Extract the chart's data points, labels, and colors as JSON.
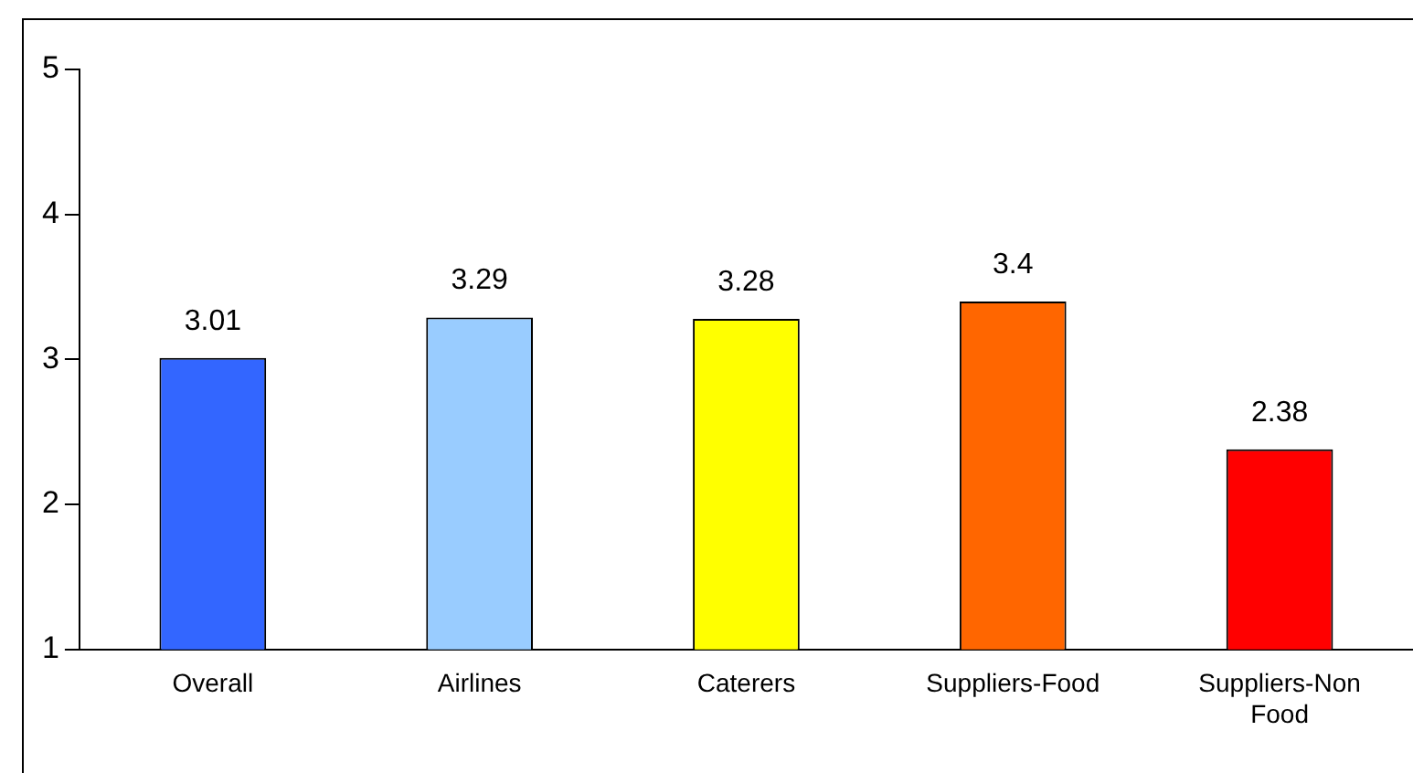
{
  "chart_data": {
    "type": "bar",
    "categories": [
      "Overall",
      "Airlines",
      "Caterers",
      "Suppliers-Food",
      "Suppliers-Non Food"
    ],
    "values": [
      3.01,
      3.29,
      3.28,
      3.4,
      2.38
    ],
    "colors": [
      "#3366ff",
      "#99ccff",
      "#ffff00",
      "#ff6600",
      "#ff0000"
    ],
    "ylim": [
      1,
      5
    ],
    "yticks": [
      1,
      2,
      3,
      4,
      5
    ],
    "grid": false,
    "legend": false,
    "data_labels": true
  }
}
